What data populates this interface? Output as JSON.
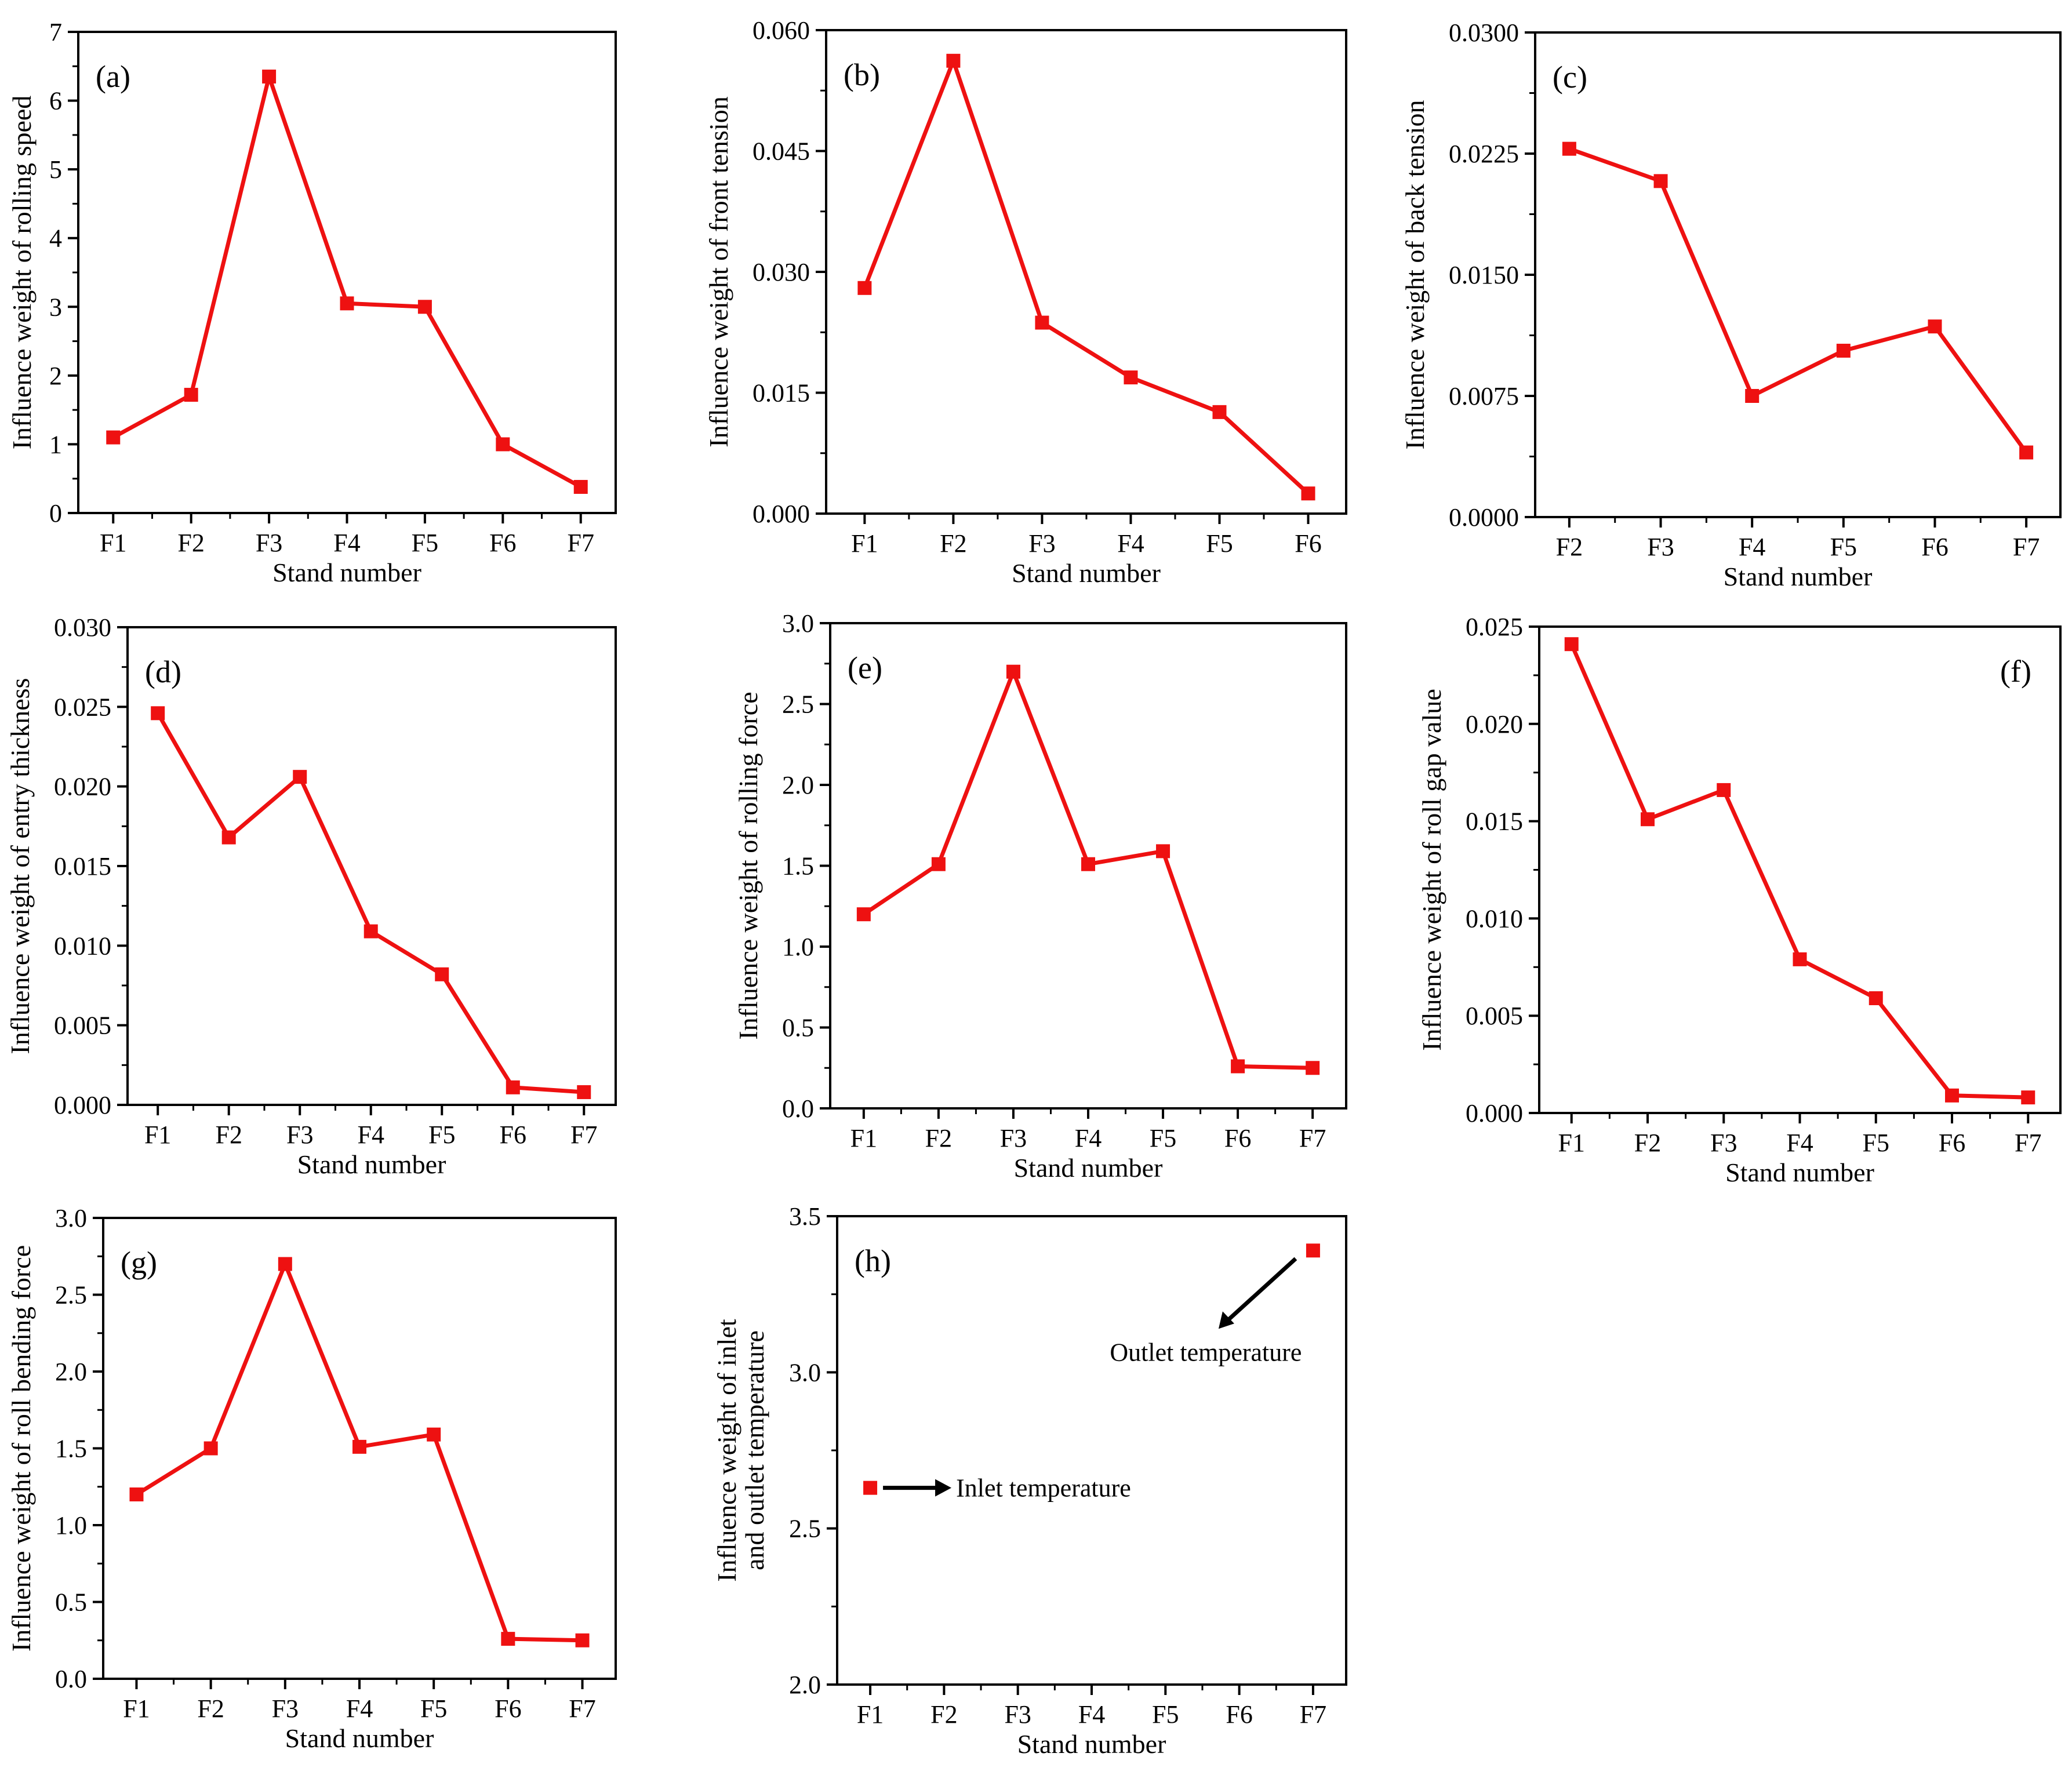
{
  "figure": {
    "series_color": "#ee1111",
    "axis_color": "#000000",
    "annotation_arrow_color": "#000000"
  },
  "chart_data": [
    {
      "id": "a",
      "panel_label": "(a)",
      "type": "line",
      "xlabel": "Stand number",
      "ylabel": "Influence weight of rolling speed",
      "categories": [
        "F1",
        "F2",
        "F3",
        "F4",
        "F5",
        "F6",
        "F7"
      ],
      "values": [
        1.1,
        1.72,
        6.35,
        3.05,
        3.0,
        1.0,
        0.38
      ],
      "ylim": [
        0,
        7
      ],
      "yticks": [
        "0",
        "1",
        "2",
        "3",
        "4",
        "5",
        "6",
        "7"
      ]
    },
    {
      "id": "b",
      "panel_label": "(b)",
      "type": "line",
      "xlabel": "Stand number",
      "ylabel": "Influence weight of front tension",
      "categories": [
        "F1",
        "F2",
        "F3",
        "F4",
        "F5",
        "F6"
      ],
      "values": [
        0.028,
        0.0562,
        0.0237,
        0.0169,
        0.0126,
        0.0025
      ],
      "ylim": [
        0,
        0.06
      ],
      "yticks": [
        "0.000",
        "0.015",
        "0.030",
        "0.045",
        "0.060"
      ]
    },
    {
      "id": "c",
      "panel_label": "(c)",
      "type": "line",
      "xlabel": "Stand number",
      "ylabel": "Influence weight of back tension",
      "categories": [
        "F2",
        "F3",
        "F4",
        "F5",
        "F6",
        "F7"
      ],
      "values": [
        0.0228,
        0.0208,
        0.0075,
        0.0103,
        0.0118,
        0.004
      ],
      "ylim": [
        0,
        0.03
      ],
      "yticks": [
        "0.0000",
        "0.0075",
        "0.0150",
        "0.0225",
        "0.0300"
      ]
    },
    {
      "id": "d",
      "panel_label": "(d)",
      "type": "line",
      "xlabel": "Stand number",
      "ylabel": "Influence weight of entry thickness",
      "categories": [
        "F1",
        "F2",
        "F3",
        "F4",
        "F5",
        "F6",
        "F7"
      ],
      "values": [
        0.0246,
        0.0168,
        0.0206,
        0.0109,
        0.0082,
        0.0011,
        0.0008
      ],
      "ylim": [
        0,
        0.03
      ],
      "yticks": [
        "0.000",
        "0.005",
        "0.010",
        "0.015",
        "0.020",
        "0.025",
        "0.030"
      ]
    },
    {
      "id": "e",
      "panel_label": "(e)",
      "type": "line",
      "xlabel": "Stand number",
      "ylabel": "Influence weight of rolling force",
      "categories": [
        "F1",
        "F2",
        "F3",
        "F4",
        "F5",
        "F6",
        "F7"
      ],
      "values": [
        1.2,
        1.51,
        2.7,
        1.51,
        1.59,
        0.26,
        0.25
      ],
      "ylim": [
        0,
        3.0
      ],
      "yticks": [
        "0.0",
        "0.5",
        "1.0",
        "1.5",
        "2.0",
        "2.5",
        "3.0"
      ]
    },
    {
      "id": "f",
      "panel_label": "(f)",
      "type": "line",
      "xlabel": "Stand number",
      "ylabel": "Influence weight of roll gap value",
      "categories": [
        "F1",
        "F2",
        "F3",
        "F4",
        "F5",
        "F6",
        "F7"
      ],
      "values": [
        0.0241,
        0.0151,
        0.0166,
        0.0079,
        0.0059,
        0.0009,
        0.0008
      ],
      "ylim": [
        0,
        0.025
      ],
      "yticks": [
        "0.000",
        "0.005",
        "0.010",
        "0.015",
        "0.020",
        "0.025"
      ]
    },
    {
      "id": "g",
      "panel_label": "(g)",
      "type": "line",
      "xlabel": "Stand number",
      "ylabel": "Influence weight of roll bending force",
      "categories": [
        "F1",
        "F2",
        "F3",
        "F4",
        "F5",
        "F6",
        "F7"
      ],
      "values": [
        1.2,
        1.5,
        2.7,
        1.51,
        1.59,
        0.26,
        0.25
      ],
      "ylim": [
        0,
        3.0
      ],
      "yticks": [
        "0.0",
        "0.5",
        "1.0",
        "1.5",
        "2.0",
        "2.5",
        "3.0"
      ]
    },
    {
      "id": "h",
      "panel_label": "(h)",
      "type": "scatter",
      "xlabel": "Stand number",
      "ylabel_lines": [
        "Influence weight of inlet",
        "and outlet temperature"
      ],
      "categories": [
        "F1",
        "F2",
        "F3",
        "F4",
        "F5",
        "F6",
        "F7"
      ],
      "points": [
        {
          "category": "F1",
          "value": 2.63,
          "annotation": "Inlet temperature"
        },
        {
          "category": "F7",
          "value": 3.39,
          "annotation": "Outlet temperature"
        }
      ],
      "ylim": [
        2.0,
        3.5
      ],
      "yticks": [
        "2.0",
        "2.5",
        "3.0",
        "3.5"
      ]
    }
  ]
}
